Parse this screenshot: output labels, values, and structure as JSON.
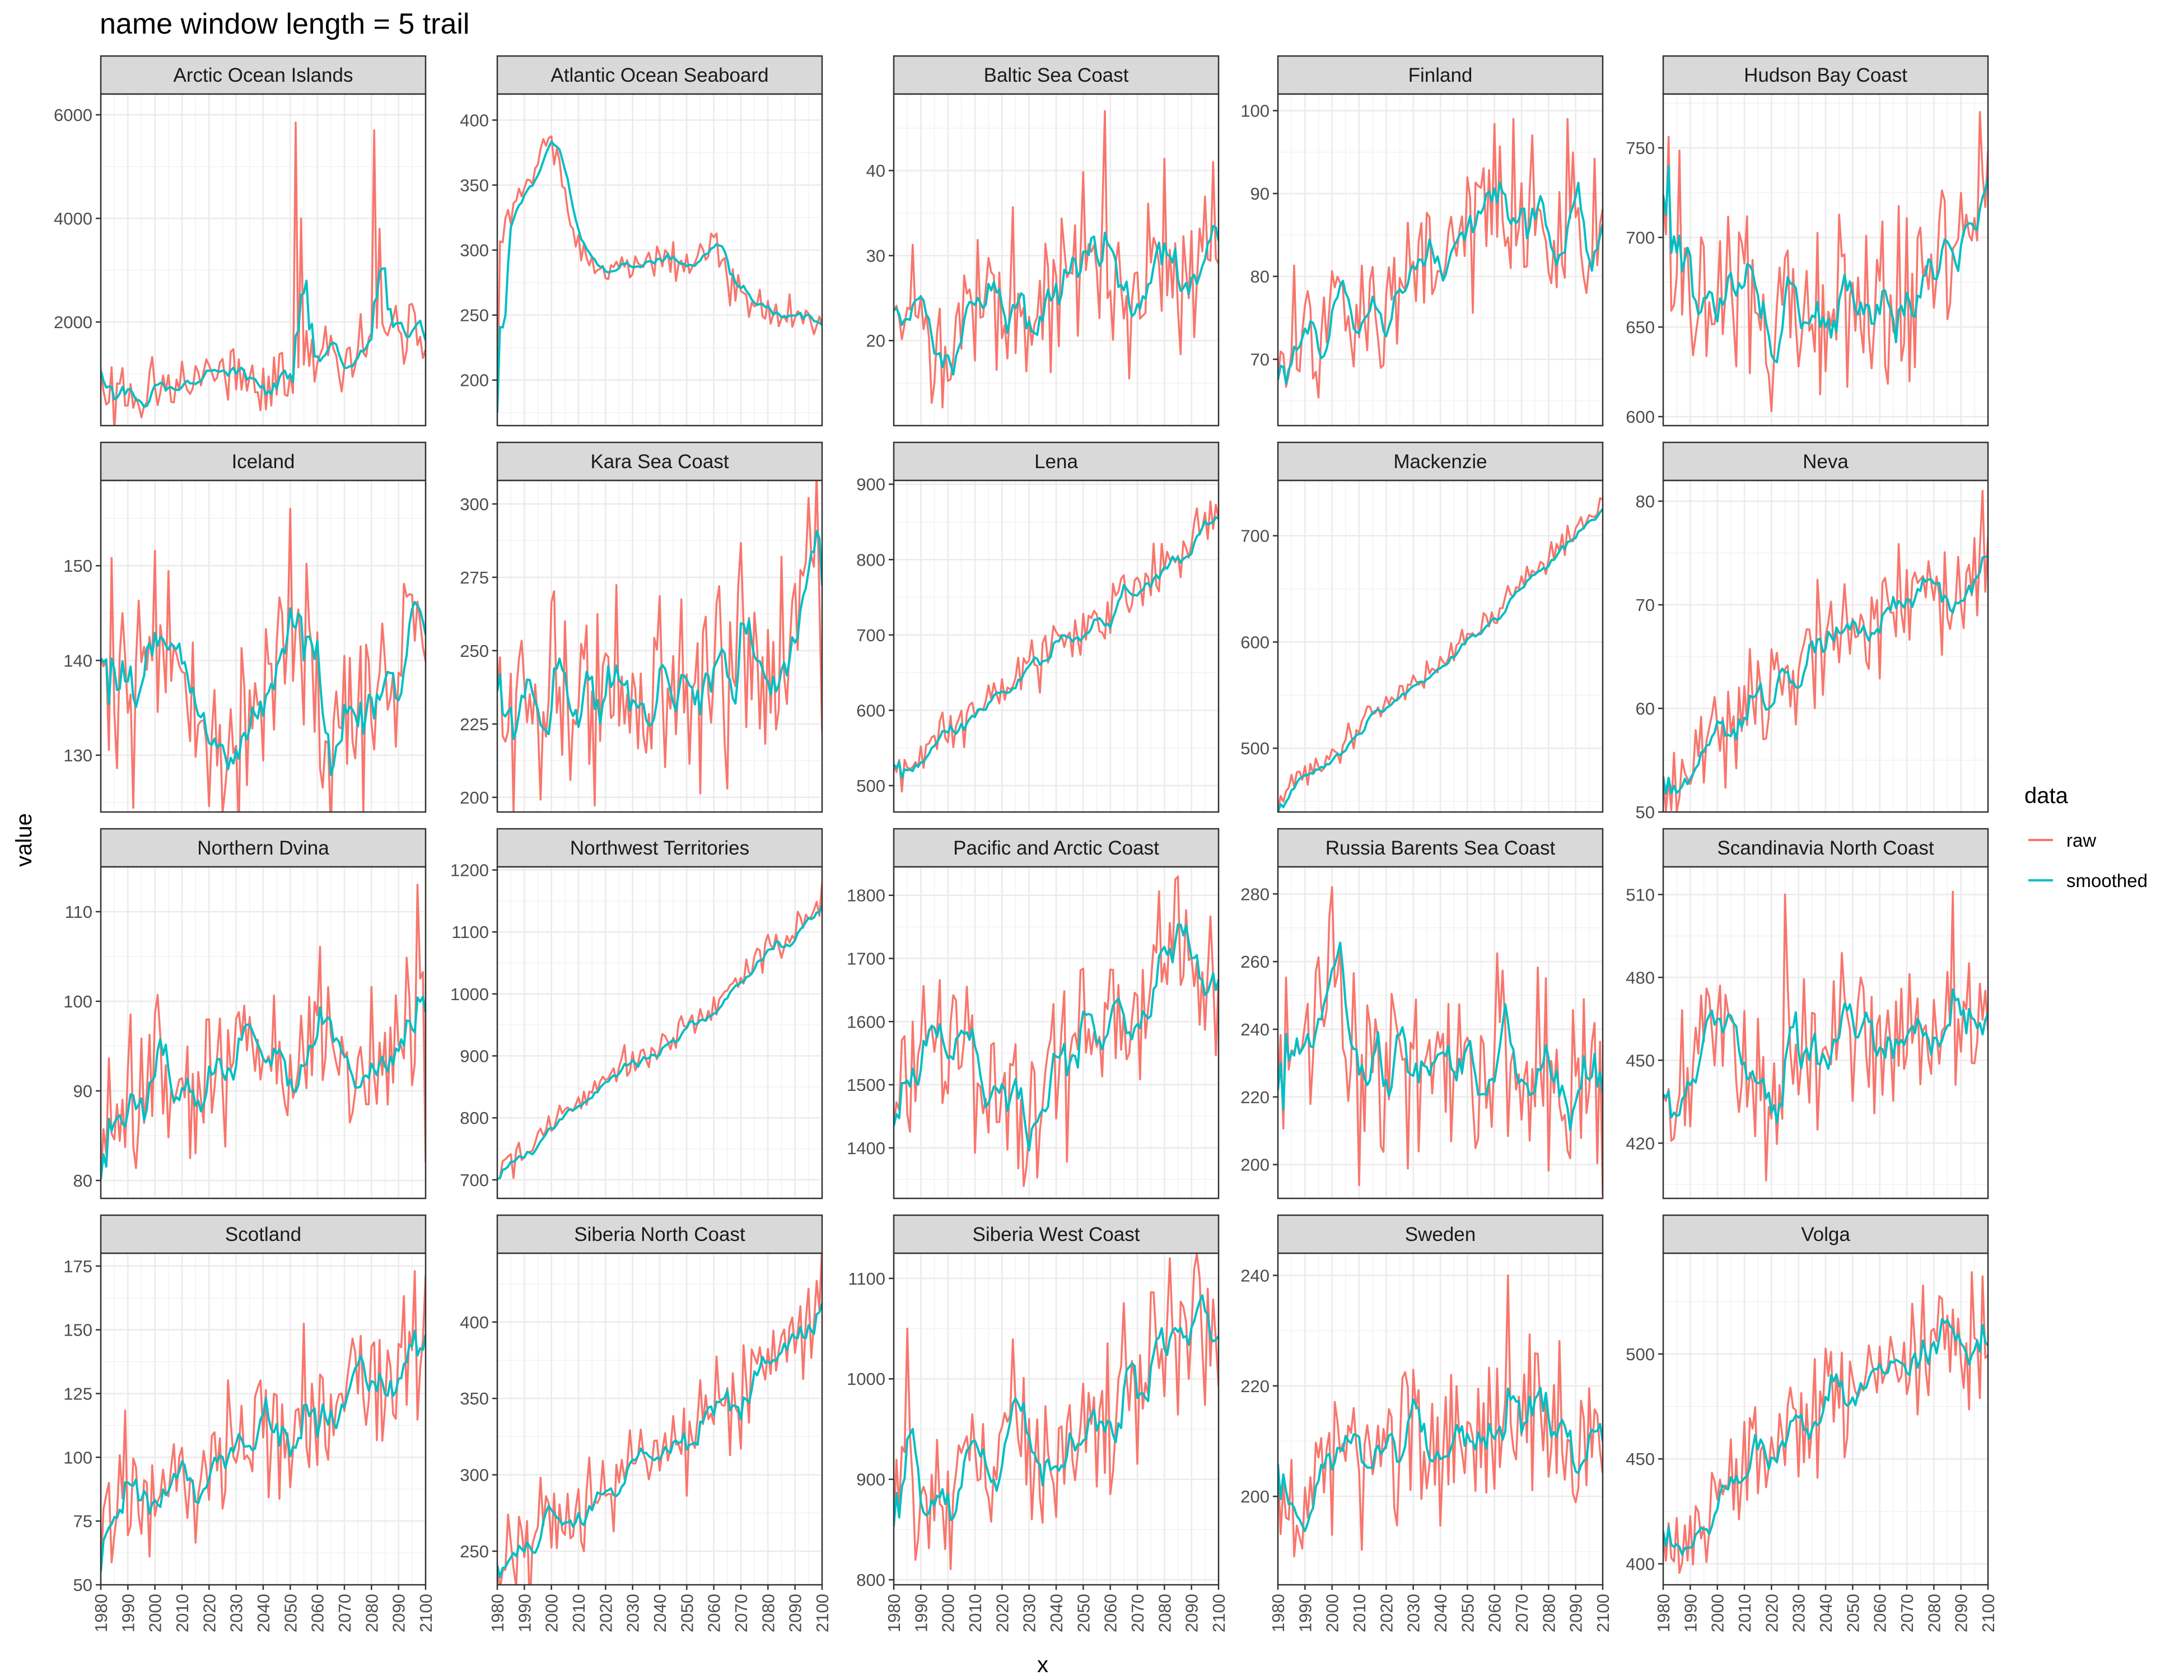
{
  "chart_data": {
    "type": "line",
    "title": "name window length = 5 trail",
    "xlabel": "x",
    "ylabel": "value",
    "xlim": [
      1980,
      2100
    ],
    "x_ticks": [
      1980,
      1990,
      2000,
      2010,
      2020,
      2030,
      2040,
      2050,
      2060,
      2070,
      2080,
      2090,
      2100
    ],
    "legend": {
      "title": "data",
      "position": "right",
      "entries": [
        {
          "label": "raw",
          "color": "#F8766D"
        },
        {
          "label": "smoothed",
          "color": "#00BFC4"
        }
      ]
    },
    "grid": true,
    "panels": [
      {
        "name": "Arctic Ocean Islands",
        "ylim": [
          0,
          6400
        ],
        "y_ticks": [
          2000,
          4000,
          6000
        ],
        "trend": [
          600,
          400,
          700,
          700,
          900,
          1200,
          900,
          800,
          1600,
          1100,
          1600,
          2000,
          1800
        ],
        "noise": 300,
        "seed": 1,
        "spikes": [
          [
            2052,
            5850
          ],
          [
            2054,
            4000
          ],
          [
            2081,
            5700
          ],
          [
            2083,
            3800
          ]
        ]
      },
      {
        "name": "Atlantic Ocean Seaboard",
        "ylim": [
          165,
          420
        ],
        "y_ticks": [
          200,
          250,
          300,
          350,
          400
        ],
        "trend": [
          305,
          345,
          390,
          300,
          285,
          290,
          295,
          295,
          300,
          265,
          255,
          245,
          248
        ],
        "noise": 8,
        "seed": 2,
        "spikes": [
          [
            1980,
            175
          ]
        ]
      },
      {
        "name": "Baltic Sea Coast",
        "ylim": [
          10,
          49
        ],
        "y_ticks": [
          20,
          30,
          40
        ],
        "trend": [
          18,
          22,
          19,
          22,
          23,
          25,
          29,
          31,
          27,
          24,
          27,
          27,
          30
        ],
        "noise": 5,
        "seed": 3,
        "spikes": [
          [
            2058,
            47
          ],
          [
            2098,
            41
          ]
        ]
      },
      {
        "name": "Finland",
        "ylim": [
          62,
          102
        ],
        "y_ticks": [
          70,
          80,
          90,
          100
        ],
        "trend": [
          68,
          72,
          77,
          78,
          79,
          81,
          84,
          86,
          88,
          86,
          85,
          87,
          87
        ],
        "noise": 4.5,
        "seed": 4,
        "spikes": [
          [
            2067,
            99
          ],
          [
            2087,
            99
          ]
        ]
      },
      {
        "name": "Hudson Bay Coast",
        "ylim": [
          595,
          780
        ],
        "y_ticks": [
          600,
          650,
          700,
          750
        ],
        "trend": [
          705,
          675,
          655,
          672,
          658,
          662,
          660,
          650,
          652,
          668,
          685,
          700,
          728
        ],
        "noise": 28,
        "seed": 5,
        "spikes": [
          [
            2097,
            770
          ]
        ]
      },
      {
        "name": "Iceland",
        "ylim": [
          124,
          159
        ],
        "y_ticks": [
          130,
          140,
          150
        ],
        "trend": [
          143,
          136,
          142,
          138,
          133,
          134,
          138,
          143,
          136,
          131,
          137,
          140,
          144
        ],
        "noise": 5,
        "seed": 6,
        "spikes": [
          [
            2050,
            156
          ]
        ]
      },
      {
        "name": "Kara Sea Coast",
        "ylim": [
          195,
          308
        ],
        "y_ticks": [
          200,
          225,
          250,
          275,
          300
        ],
        "trend": [
          232,
          238,
          240,
          234,
          238,
          242,
          236,
          242,
          243,
          246,
          232,
          262,
          280
        ],
        "noise": 18,
        "seed": 7,
        "spikes": [
          [
            2095,
            302
          ],
          [
            2100,
            222
          ]
        ]
      },
      {
        "name": "Lena",
        "ylim": [
          465,
          905
        ],
        "y_ticks": [
          500,
          600,
          700,
          800,
          900
        ],
        "trend": [
          510,
          545,
          575,
          600,
          625,
          655,
          680,
          700,
          730,
          765,
          795,
          830,
          852
        ],
        "noise": 18,
        "seed": 8,
        "spikes": []
      },
      {
        "name": "Mackenzie",
        "ylim": [
          440,
          752
        ],
        "y_ticks": [
          500,
          600,
          700
        ],
        "trend": [
          455,
          478,
          495,
          520,
          540,
          560,
          580,
          600,
          625,
          655,
          680,
          705,
          730
        ],
        "noise": 7,
        "seed": 9,
        "spikes": []
      },
      {
        "name": "Neva",
        "ylim": [
          50,
          82
        ],
        "y_ticks": [
          50,
          60,
          70,
          80
        ],
        "trend": [
          52,
          55,
          58,
          60,
          62,
          64,
          66,
          67,
          69,
          70,
          71,
          72,
          74
        ],
        "noise": 2.5,
        "seed": 10,
        "spikes": [
          [
            2098,
            81
          ]
        ]
      },
      {
        "name": "Northern Dvina",
        "ylim": [
          78,
          115
        ],
        "y_ticks": [
          80,
          90,
          100,
          110
        ],
        "trend": [
          83,
          86,
          91,
          89,
          90,
          96,
          94,
          93,
          98,
          95,
          93,
          95,
          100
        ],
        "noise": 4.5,
        "seed": 11,
        "spikes": [
          [
            2097,
            113
          ],
          [
            2100,
            82
          ]
        ]
      },
      {
        "name": "Northwest Territories",
        "ylim": [
          670,
          1205
        ],
        "y_ticks": [
          700,
          800,
          900,
          1000,
          1100,
          1200
        ],
        "trend": [
          700,
          740,
          790,
          830,
          860,
          890,
          920,
          950,
          985,
          1025,
          1065,
          1105,
          1150
        ],
        "noise": 15,
        "seed": 12,
        "spikes": []
      },
      {
        "name": "Pacific and Arctic Coast",
        "ylim": [
          1320,
          1845
        ],
        "y_ticks": [
          1400,
          1500,
          1600,
          1700,
          1800
        ],
        "trend": [
          1510,
          1560,
          1570,
          1540,
          1470,
          1450,
          1520,
          1590,
          1600,
          1610,
          1680,
          1720,
          1640
        ],
        "noise": 70,
        "seed": 13,
        "spikes": [
          [
            2084,
            1825
          ]
        ]
      },
      {
        "name": "Russia Barents Sea Coast",
        "ylim": [
          190,
          288
        ],
        "y_ticks": [
          200,
          220,
          240,
          260,
          280
        ],
        "trend": [
          226,
          235,
          262,
          228,
          227,
          230,
          228,
          225,
          238,
          230,
          222,
          218,
          232
        ],
        "noise": 14,
        "seed": 14,
        "spikes": [
          [
            2000,
            282
          ],
          [
            2100,
            191
          ]
        ]
      },
      {
        "name": "Scandinavia North Coast",
        "ylim": [
          400,
          520
        ],
        "y_ticks": [
          420,
          450,
          480,
          510
        ],
        "trend": [
          430,
          445,
          468,
          448,
          446,
          455,
          455,
          460,
          462,
          465,
          465,
          462,
          472
        ],
        "noise": 16,
        "seed": 15,
        "spikes": [
          [
            2025,
            510
          ],
          [
            2087,
            511
          ]
        ]
      },
      {
        "name": "Scotland",
        "ylim": [
          50,
          180
        ],
        "y_ticks": [
          50,
          75,
          100,
          125,
          150,
          175
        ],
        "trend": [
          85,
          82,
          85,
          90,
          95,
          105,
          115,
          118,
          115,
          125,
          135,
          140,
          145
        ],
        "noise": 15,
        "seed": 16,
        "spikes": [
          [
            1980,
            55
          ],
          [
            2096,
            173
          ]
        ]
      },
      {
        "name": "Siberia North Coast",
        "ylim": [
          228,
          445
        ],
        "y_ticks": [
          250,
          300,
          350,
          400
        ],
        "trend": [
          240,
          255,
          270,
          280,
          295,
          305,
          320,
          330,
          345,
          355,
          370,
          395,
          410
        ],
        "noise": 18,
        "seed": 17,
        "spikes": []
      },
      {
        "name": "Siberia West Coast",
        "ylim": [
          795,
          1125
        ],
        "y_ticks": [
          800,
          900,
          1000,
          1100
        ],
        "trend": [
          900,
          890,
          885,
          920,
          960,
          930,
          920,
          950,
          970,
          985,
          1030,
          1050,
          1045
        ],
        "noise": 40,
        "seed": 18,
        "spikes": [
          [
            1985,
            1050
          ],
          [
            2082,
            1120
          ]
        ]
      },
      {
        "name": "Sweden",
        "ylim": [
          184,
          244
        ],
        "y_ticks": [
          200,
          220,
          240
        ],
        "trend": [
          193,
          200,
          208,
          205,
          208,
          212,
          210,
          208,
          214,
          222,
          212,
          208,
          211
        ],
        "noise": 8,
        "seed": 19,
        "spikes": [
          [
            2065,
            240
          ]
        ]
      },
      {
        "name": "Volga",
        "ylim": [
          390,
          548
        ],
        "y_ticks": [
          400,
          450,
          500
        ],
        "trend": [
          410,
          415,
          435,
          445,
          455,
          470,
          480,
          485,
          490,
          495,
          497,
          500,
          505
        ],
        "noise": 14,
        "seed": 20,
        "spikes": [
          [
            2098,
            537
          ]
        ]
      }
    ]
  }
}
